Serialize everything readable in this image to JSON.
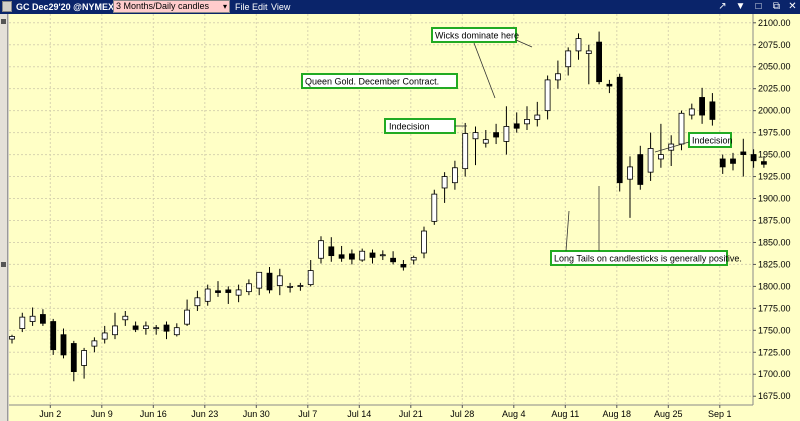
{
  "toolbar": {
    "symbol": "GC Dec29'20 @NYMEX",
    "interval": "3 Months/Daily candles",
    "menu": [
      "File",
      "Edit",
      "View"
    ]
  },
  "colors": {
    "plot_bg": "#ffffc6",
    "candle": "#000000",
    "annotation_border": "#22aa22",
    "title_bar": "#0a246a"
  },
  "chart_data": {
    "type": "candlestick",
    "ylim": [
      1665,
      2110
    ],
    "y_ticks": [
      1675,
      1700,
      1725,
      1750,
      1775,
      1800,
      1825,
      1850,
      1875,
      1900,
      1925,
      1950,
      1975,
      2000,
      2025,
      2050,
      2075,
      2100
    ],
    "y_tick_labels": [
      "1675.00",
      "1700.00",
      "1725.00",
      "1750.00",
      "1775.00",
      "1800.00",
      "1825.00",
      "1850.00",
      "1875.00",
      "1900.00",
      "1925.00",
      "1950.00",
      "1975.00",
      "2000.00",
      "2025.00",
      "2050.00",
      "2075.00",
      "2100.00"
    ],
    "x_labels": [
      "Jun 2",
      "Jun 9",
      "Jun 16",
      "Jun 23",
      "Jun 30",
      "Jul 7",
      "Jul 14",
      "Jul 21",
      "Jul 28",
      "Aug 4",
      "Aug 11",
      "Aug 18",
      "Aug 25",
      "Sep 1"
    ],
    "x_label_trading_index": [
      1,
      6,
      11,
      16,
      21,
      26,
      31,
      36,
      41,
      46,
      51,
      56,
      61,
      66
    ],
    "grid": true,
    "candles": [
      {
        "o": 1740,
        "h": 1745,
        "l": 1735,
        "c": 1743
      },
      {
        "o": 1752,
        "h": 1770,
        "l": 1748,
        "c": 1765
      },
      {
        "o": 1760,
        "h": 1776,
        "l": 1755,
        "c": 1766
      },
      {
        "o": 1768,
        "h": 1774,
        "l": 1755,
        "c": 1758
      },
      {
        "o": 1760,
        "h": 1763,
        "l": 1722,
        "c": 1728
      },
      {
        "o": 1745,
        "h": 1752,
        "l": 1718,
        "c": 1722
      },
      {
        "o": 1735,
        "h": 1738,
        "l": 1692,
        "c": 1703
      },
      {
        "o": 1710,
        "h": 1730,
        "l": 1695,
        "c": 1727
      },
      {
        "o": 1732,
        "h": 1742,
        "l": 1725,
        "c": 1738
      },
      {
        "o": 1740,
        "h": 1755,
        "l": 1735,
        "c": 1747
      },
      {
        "o": 1745,
        "h": 1770,
        "l": 1740,
        "c": 1755
      },
      {
        "o": 1762,
        "h": 1772,
        "l": 1755,
        "c": 1766
      },
      {
        "o": 1755,
        "h": 1760,
        "l": 1748,
        "c": 1751
      },
      {
        "o": 1752,
        "h": 1760,
        "l": 1745,
        "c": 1755
      },
      {
        "o": 1752,
        "h": 1756,
        "l": 1745,
        "c": 1753
      },
      {
        "o": 1756,
        "h": 1760,
        "l": 1740,
        "c": 1749
      },
      {
        "o": 1745,
        "h": 1758,
        "l": 1743,
        "c": 1753
      },
      {
        "o": 1757,
        "h": 1785,
        "l": 1755,
        "c": 1773
      },
      {
        "o": 1778,
        "h": 1795,
        "l": 1772,
        "c": 1787
      },
      {
        "o": 1783,
        "h": 1802,
        "l": 1778,
        "c": 1797
      },
      {
        "o": 1795,
        "h": 1806,
        "l": 1788,
        "c": 1793
      },
      {
        "o": 1796,
        "h": 1800,
        "l": 1780,
        "c": 1793
      },
      {
        "o": 1790,
        "h": 1802,
        "l": 1782,
        "c": 1796
      },
      {
        "o": 1794,
        "h": 1808,
        "l": 1790,
        "c": 1803
      },
      {
        "o": 1798,
        "h": 1812,
        "l": 1790,
        "c": 1816
      },
      {
        "o": 1815,
        "h": 1822,
        "l": 1792,
        "c": 1796
      },
      {
        "o": 1801,
        "h": 1820,
        "l": 1790,
        "c": 1812
      },
      {
        "o": 1799,
        "h": 1804,
        "l": 1793,
        "c": 1800
      },
      {
        "o": 1800,
        "h": 1804,
        "l": 1795,
        "c": 1801
      },
      {
        "o": 1802,
        "h": 1830,
        "l": 1800,
        "c": 1818
      },
      {
        "o": 1832,
        "h": 1857,
        "l": 1826,
        "c": 1852
      },
      {
        "o": 1845,
        "h": 1856,
        "l": 1828,
        "c": 1835
      },
      {
        "o": 1836,
        "h": 1846,
        "l": 1828,
        "c": 1832
      },
      {
        "o": 1837,
        "h": 1842,
        "l": 1825,
        "c": 1831
      },
      {
        "o": 1830,
        "h": 1843,
        "l": 1828,
        "c": 1840
      },
      {
        "o": 1838,
        "h": 1842,
        "l": 1826,
        "c": 1833
      },
      {
        "o": 1835,
        "h": 1841,
        "l": 1830,
        "c": 1836
      },
      {
        "o": 1832,
        "h": 1840,
        "l": 1825,
        "c": 1828
      },
      {
        "o": 1825,
        "h": 1830,
        "l": 1818,
        "c": 1822
      },
      {
        "o": 1830,
        "h": 1835,
        "l": 1825,
        "c": 1833
      },
      {
        "o": 1838,
        "h": 1868,
        "l": 1832,
        "c": 1863
      },
      {
        "o": 1874,
        "h": 1910,
        "l": 1870,
        "c": 1905
      },
      {
        "o": 1912,
        "h": 1930,
        "l": 1895,
        "c": 1925
      },
      {
        "o": 1918,
        "h": 1943,
        "l": 1910,
        "c": 1935
      },
      {
        "o": 1934,
        "h": 1986,
        "l": 1925,
        "c": 1974
      },
      {
        "o": 1968,
        "h": 1982,
        "l": 1938,
        "c": 1975
      },
      {
        "o": 1963,
        "h": 1978,
        "l": 1958,
        "c": 1967
      },
      {
        "o": 1975,
        "h": 1985,
        "l": 1962,
        "c": 1970
      },
      {
        "o": 1965,
        "h": 2005,
        "l": 1950,
        "c": 1982
      },
      {
        "o": 1985,
        "h": 1998,
        "l": 1975,
        "c": 1980
      },
      {
        "o": 1985,
        "h": 2005,
        "l": 1978,
        "c": 1990
      },
      {
        "o": 1990,
        "h": 2010,
        "l": 1982,
        "c": 1995
      },
      {
        "o": 2000,
        "h": 2040,
        "l": 1990,
        "c": 2035
      },
      {
        "o": 2035,
        "h": 2057,
        "l": 2025,
        "c": 2042
      },
      {
        "o": 2050,
        "h": 2072,
        "l": 2040,
        "c": 2068
      },
      {
        "o": 2068,
        "h": 2088,
        "l": 2058,
        "c": 2082
      },
      {
        "o": 2065,
        "h": 2075,
        "l": 2030,
        "c": 2068
      },
      {
        "o": 2078,
        "h": 2090,
        "l": 2030,
        "c": 2033
      },
      {
        "o": 2030,
        "h": 2035,
        "l": 2020,
        "c": 2028
      },
      {
        "o": 2038,
        "h": 2042,
        "l": 1908,
        "c": 1918
      },
      {
        "o": 1922,
        "h": 1948,
        "l": 1878,
        "c": 1936
      },
      {
        "o": 1950,
        "h": 1960,
        "l": 1910,
        "c": 1916
      },
      {
        "o": 1930,
        "h": 1975,
        "l": 1920,
        "c": 1957
      },
      {
        "o": 1945,
        "h": 1985,
        "l": 1935,
        "c": 1950
      },
      {
        "o": 1955,
        "h": 1972,
        "l": 1937,
        "c": 1962
      },
      {
        "o": 1962,
        "h": 2000,
        "l": 1955,
        "c": 1997
      },
      {
        "o": 1995,
        "h": 2008,
        "l": 1990,
        "c": 2002
      },
      {
        "o": 2015,
        "h": 2026,
        "l": 1985,
        "c": 1995
      },
      {
        "o": 2010,
        "h": 2020,
        "l": 1983,
        "c": 1990
      },
      {
        "o": 1945,
        "h": 1950,
        "l": 1928,
        "c": 1936
      },
      {
        "o": 1945,
        "h": 1952,
        "l": 1932,
        "c": 1940
      },
      {
        "o": 1953,
        "h": 1968,
        "l": 1925,
        "c": 1950
      },
      {
        "o": 1950,
        "h": 1956,
        "l": 1935,
        "c": 1943
      },
      {
        "o": 1942,
        "h": 1948,
        "l": 1935,
        "c": 1939
      }
    ],
    "annotations": [
      "Wicks dominate here",
      "Queen Gold. December Contract.",
      "Indecision",
      "Indecision",
      "Long Tails on candlesticks is generally positive."
    ]
  }
}
